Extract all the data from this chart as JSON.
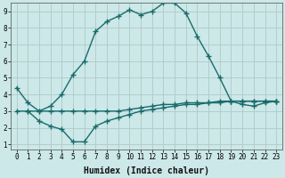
{
  "title": "",
  "xlabel": "Humidex (Indice chaleur)",
  "background_color": "#cce8e8",
  "grid_color": "#b0c8c8",
  "line_color": "#1a6b6b",
  "xlim": [
    -0.5,
    23.5
  ],
  "ylim": [
    0.7,
    9.5
  ],
  "xticks": [
    0,
    1,
    2,
    3,
    4,
    5,
    6,
    7,
    8,
    9,
    10,
    11,
    12,
    13,
    14,
    15,
    16,
    17,
    18,
    19,
    20,
    21,
    22,
    23
  ],
  "yticks": [
    1,
    2,
    3,
    4,
    5,
    6,
    7,
    8,
    9
  ],
  "line1_x": [
    0,
    1,
    2,
    3,
    4,
    5,
    6,
    7,
    8,
    9,
    10,
    11,
    12,
    13,
    14,
    15,
    16,
    17,
    18,
    19,
    20,
    21,
    22,
    23
  ],
  "line1_y": [
    4.4,
    3.5,
    3.0,
    3.3,
    4.0,
    5.2,
    6.0,
    7.8,
    8.4,
    8.7,
    9.1,
    8.8,
    9.0,
    9.5,
    9.5,
    8.9,
    7.5,
    6.3,
    5.0,
    3.6,
    3.4,
    3.3,
    3.5,
    3.6
  ],
  "line2_x": [
    0,
    1,
    2,
    3,
    4,
    5,
    6,
    7,
    8,
    9,
    10,
    11,
    12,
    13,
    14,
    15,
    16,
    17,
    18,
    19,
    20,
    21,
    22,
    23
  ],
  "line2_y": [
    3.0,
    3.0,
    3.0,
    3.0,
    3.0,
    3.0,
    3.0,
    3.0,
    3.0,
    3.0,
    3.1,
    3.2,
    3.3,
    3.4,
    3.4,
    3.5,
    3.5,
    3.5,
    3.6,
    3.6,
    3.6,
    3.6,
    3.6,
    3.6
  ],
  "line3_x": [
    1,
    2,
    3,
    4,
    5,
    6,
    7,
    8,
    9,
    10,
    11,
    12,
    13,
    14,
    15,
    16,
    17,
    18,
    19,
    20,
    21,
    22,
    23
  ],
  "line3_y": [
    3.0,
    2.4,
    2.1,
    1.9,
    1.15,
    1.15,
    2.1,
    2.4,
    2.6,
    2.8,
    3.0,
    3.1,
    3.2,
    3.3,
    3.4,
    3.4,
    3.5,
    3.5,
    3.6,
    3.6,
    3.6,
    3.6,
    3.6
  ],
  "marker": "+",
  "markersize": 4,
  "linewidth": 1.0,
  "label_fontsize": 7,
  "tick_fontsize": 5.5
}
